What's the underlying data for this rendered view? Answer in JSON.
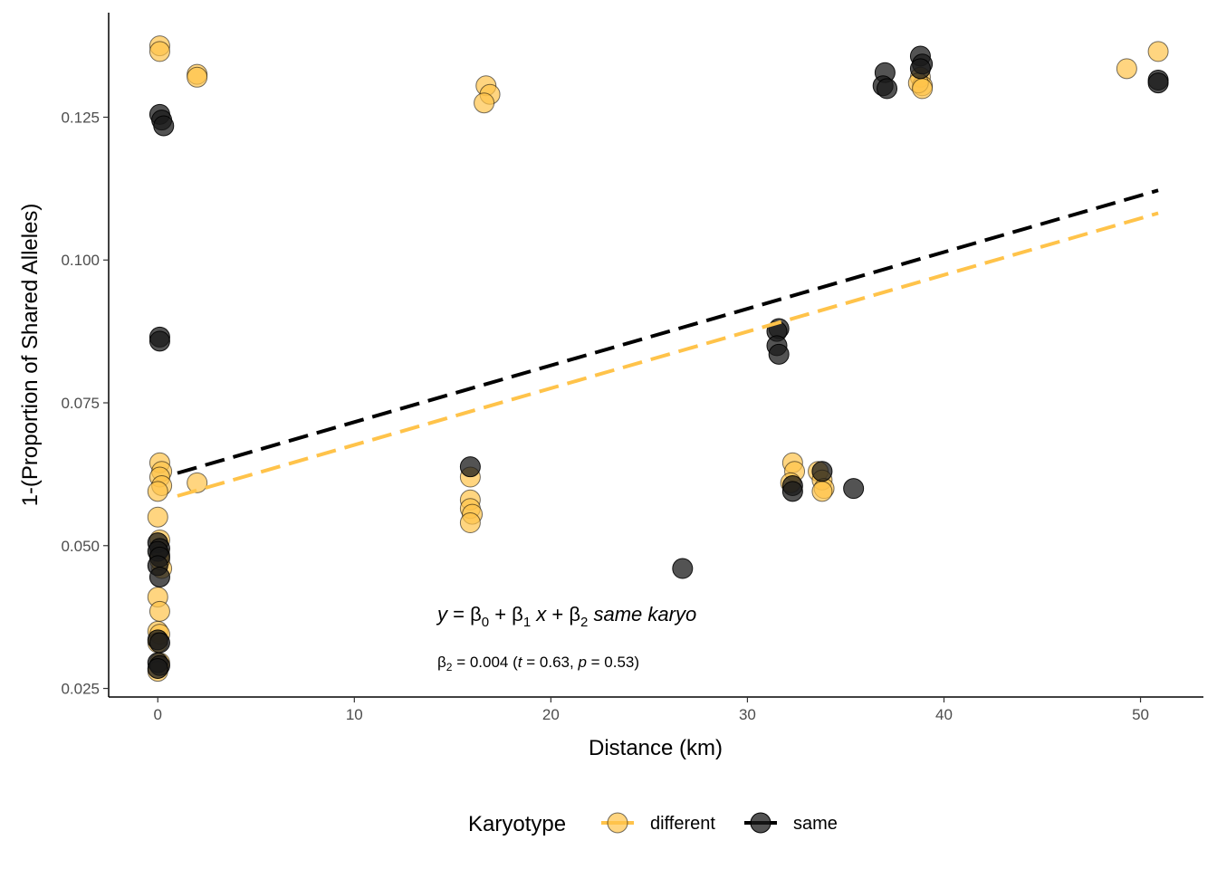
{
  "chart_data": {
    "type": "scatter",
    "xlabel": "Distance (km)",
    "ylabel": "1-(Proportion of Shared Alleles)",
    "xlim": [
      -2.5,
      53.2
    ],
    "ylim": [
      0.0235,
      0.1433
    ],
    "x_ticks": [
      0,
      10,
      20,
      30,
      40,
      50
    ],
    "x_tick_labels": [
      "0",
      "10",
      "20",
      "30",
      "40",
      "50"
    ],
    "y_ticks": [
      0.025,
      0.05,
      0.075,
      0.1,
      0.125
    ],
    "y_tick_labels": [
      "0.025",
      "0.050",
      "0.075",
      "0.100",
      "0.125"
    ],
    "grid": false,
    "legend": {
      "title": "Karyotype",
      "position": "bottom",
      "items": [
        {
          "label": "different",
          "color": "#FFC34A"
        },
        {
          "label": "same",
          "color": "#1A1A1A"
        }
      ]
    },
    "annotation": {
      "equation": {
        "y": "y",
        "eq1": " = β",
        "sub0": "0",
        "plus1": " + β",
        "sub1": "1",
        "x": " x",
        "plus2": "  + β",
        "sub2": "2",
        "term": " same karyo"
      },
      "stat": {
        "beta": "β",
        "sub": "2",
        "t1": " = 0.004 (",
        "t_sym": "t",
        "t2": " = 0.63, ",
        "p_sym": "p",
        "t3": " = 0.53)"
      }
    },
    "series": [
      {
        "name": "different",
        "color": "#FFC34A",
        "points": [
          [
            0.1,
            0.1375
          ],
          [
            0.1,
            0.1365
          ],
          [
            2.0,
            0.1325
          ],
          [
            2.0,
            0.132
          ],
          [
            16.7,
            0.1305
          ],
          [
            16.9,
            0.129
          ],
          [
            16.6,
            0.1275
          ],
          [
            38.8,
            0.132
          ],
          [
            38.9,
            0.1305
          ],
          [
            38.7,
            0.131
          ],
          [
            38.9,
            0.13
          ],
          [
            49.3,
            0.1335
          ],
          [
            50.9,
            0.1365
          ],
          [
            0.1,
            0.0645
          ],
          [
            0.2,
            0.063
          ],
          [
            0.1,
            0.062
          ],
          [
            0.2,
            0.0605
          ],
          [
            0.0,
            0.0595
          ],
          [
            2.0,
            0.061
          ],
          [
            0.0,
            0.055
          ],
          [
            0.1,
            0.051
          ],
          [
            0.1,
            0.0485
          ],
          [
            0.2,
            0.046
          ],
          [
            0.1,
            0.0475
          ],
          [
            0.0,
            0.041
          ],
          [
            0.1,
            0.0385
          ],
          [
            0.0,
            0.035
          ],
          [
            0.1,
            0.0345
          ],
          [
            0.0,
            0.033
          ],
          [
            0.1,
            0.0295
          ],
          [
            0.0,
            0.028
          ],
          [
            15.9,
            0.062
          ],
          [
            15.9,
            0.058
          ],
          [
            15.9,
            0.0565
          ],
          [
            16.0,
            0.0555
          ],
          [
            15.9,
            0.054
          ],
          [
            32.3,
            0.0645
          ],
          [
            32.4,
            0.063
          ],
          [
            32.2,
            0.061
          ],
          [
            33.6,
            0.063
          ],
          [
            33.8,
            0.0615
          ],
          [
            33.9,
            0.06
          ],
          [
            33.8,
            0.0595
          ]
        ]
      },
      {
        "name": "same",
        "color": "#1A1A1A",
        "points": [
          [
            0.1,
            0.1255
          ],
          [
            0.2,
            0.1245
          ],
          [
            0.3,
            0.1235
          ],
          [
            0.1,
            0.0865
          ],
          [
            0.1,
            0.0858
          ],
          [
            0.0,
            0.0505
          ],
          [
            0.1,
            0.0495
          ],
          [
            0.0,
            0.049
          ],
          [
            0.1,
            0.048
          ],
          [
            0.0,
            0.0465
          ],
          [
            0.1,
            0.0445
          ],
          [
            0.0,
            0.0335
          ],
          [
            0.1,
            0.033
          ],
          [
            0.0,
            0.0295
          ],
          [
            0.1,
            0.029
          ],
          [
            0.0,
            0.0285
          ],
          [
            15.9,
            0.0638
          ],
          [
            26.7,
            0.046
          ],
          [
            31.6,
            0.088
          ],
          [
            31.5,
            0.0875
          ],
          [
            31.5,
            0.085
          ],
          [
            31.6,
            0.0835
          ],
          [
            32.3,
            0.0605
          ],
          [
            32.3,
            0.0595
          ],
          [
            33.8,
            0.063
          ],
          [
            35.4,
            0.06
          ],
          [
            37.0,
            0.1328
          ],
          [
            36.9,
            0.1305
          ],
          [
            37.1,
            0.13
          ],
          [
            38.8,
            0.1357
          ],
          [
            38.9,
            0.1343
          ],
          [
            38.8,
            0.1335
          ],
          [
            50.9,
            0.1315
          ],
          [
            50.9,
            0.131
          ]
        ]
      }
    ],
    "trend_lines": [
      {
        "name": "different",
        "color": "#FFC34A",
        "x": [
          1.0,
          50.9
        ],
        "y": [
          0.0587,
          0.1082
        ]
      },
      {
        "name": "same",
        "color": "#000000",
        "x": [
          1.0,
          50.9
        ],
        "y": [
          0.0627,
          0.1122
        ]
      }
    ]
  }
}
